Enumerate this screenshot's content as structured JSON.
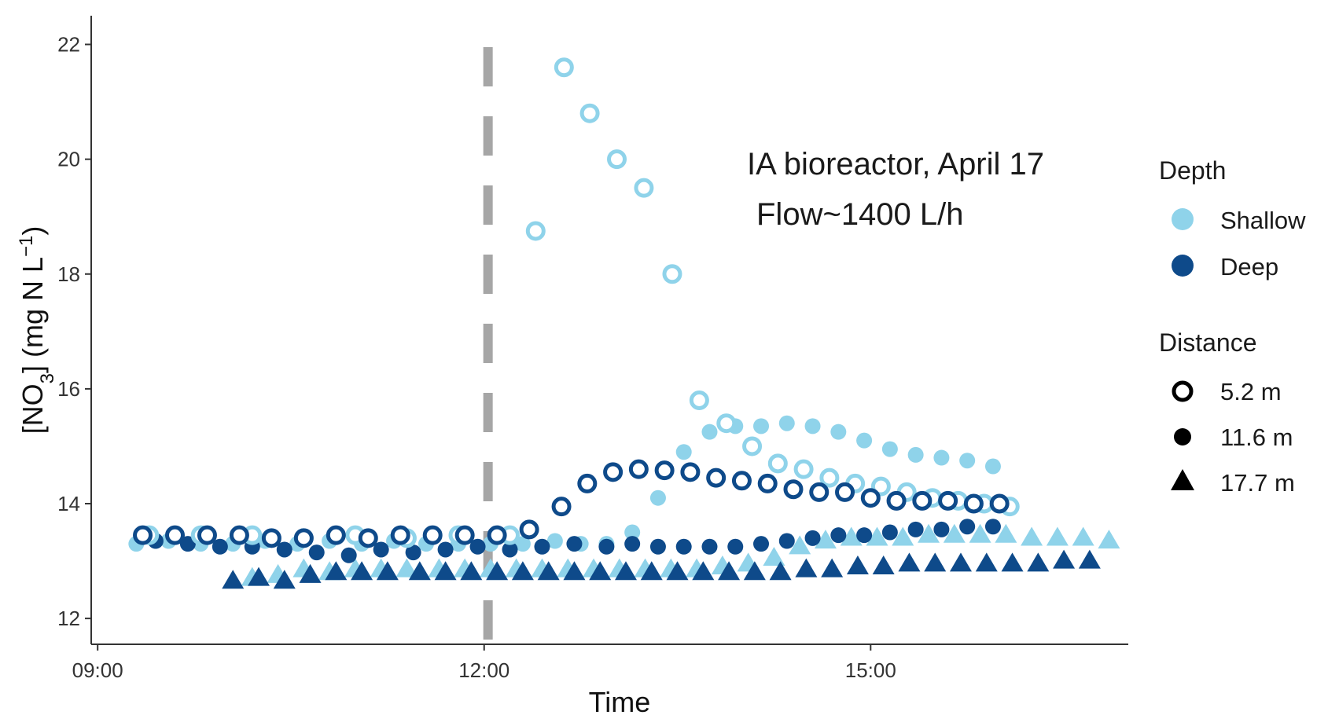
{
  "chart_data": {
    "type": "scatter",
    "xlabel": "Time",
    "ylabel": "[NO3] (mg N L−1)",
    "ylabel_parts": {
      "pre": "[NO",
      "sub": "3",
      "mid": "] (mg N L",
      "sup": "−1",
      "post": ")"
    },
    "x_unit": "hours",
    "xlim": [
      8.95,
      17.0
    ],
    "ylim": [
      11.55,
      22.5
    ],
    "xticks": [
      9,
      12,
      15
    ],
    "xtick_labels": [
      "09:00",
      "12:00",
      "15:00"
    ],
    "yticks": [
      12,
      14,
      16,
      18,
      20,
      22
    ],
    "ytick_labels": [
      "12",
      "14",
      "16",
      "18",
      "20",
      "22"
    ],
    "grid": false,
    "vline": {
      "x": 12.03,
      "style": "dashed",
      "color": "#a6a6a6"
    },
    "annotations": [
      "IA bioreactor, April 17",
      "Flow~1400 L/h"
    ],
    "colors": {
      "Shallow": "#8fd3ea",
      "Deep": "#0e4a8a"
    },
    "legend": {
      "depth_title": "Depth",
      "depth_items": [
        "Shallow",
        "Deep"
      ],
      "distance_title": "Distance",
      "distance_items": [
        {
          "label": "5.2 m",
          "shape": "ring"
        },
        {
          "label": "11.6 m",
          "shape": "dot"
        },
        {
          "label": "17.7 m",
          "shape": "triangle"
        }
      ],
      "placement": "right"
    },
    "series": [
      {
        "depth": "Shallow",
        "distance": "5.2 m",
        "shape": "ring",
        "x": [
          9.4,
          9.8,
          10.2,
          10.6,
          11.0,
          11.4,
          11.8,
          12.2,
          12.4,
          12.62,
          12.82,
          13.03,
          13.24,
          13.46,
          13.67,
          13.88,
          14.08,
          14.28,
          14.48,
          14.68,
          14.88,
          15.08,
          15.28,
          15.48,
          15.68,
          15.88,
          16.08
        ],
        "y": [
          13.45,
          13.45,
          13.45,
          13.4,
          13.45,
          13.4,
          13.45,
          13.45,
          18.75,
          21.6,
          20.8,
          20.0,
          19.5,
          18.0,
          15.8,
          15.4,
          15.0,
          14.7,
          14.6,
          14.45,
          14.35,
          14.3,
          14.2,
          14.1,
          14.05,
          14.0,
          13.95
        ]
      },
      {
        "depth": "Deep",
        "distance": "5.2 m",
        "shape": "ring",
        "x": [
          9.35,
          9.6,
          9.85,
          10.1,
          10.35,
          10.6,
          10.85,
          11.1,
          11.35,
          11.6,
          11.85,
          12.1,
          12.35,
          12.6,
          12.8,
          13.0,
          13.2,
          13.4,
          13.6,
          13.8,
          14.0,
          14.2,
          14.4,
          14.6,
          14.8,
          15.0,
          15.2,
          15.4,
          15.6,
          15.8,
          16.0
        ],
        "y": [
          13.45,
          13.45,
          13.45,
          13.45,
          13.4,
          13.4,
          13.45,
          13.4,
          13.45,
          13.45,
          13.45,
          13.45,
          13.55,
          13.95,
          14.35,
          14.55,
          14.6,
          14.58,
          14.55,
          14.45,
          14.4,
          14.35,
          14.25,
          14.2,
          14.2,
          14.1,
          14.05,
          14.05,
          14.05,
          14.0,
          14.0
        ]
      },
      {
        "depth": "Shallow",
        "distance": "11.6 m",
        "shape": "dot",
        "x": [
          9.3,
          9.55,
          9.8,
          10.05,
          10.3,
          10.55,
          10.8,
          11.05,
          11.3,
          11.55,
          11.8,
          12.05,
          12.3,
          12.55,
          12.75,
          12.95,
          13.15,
          13.35,
          13.55,
          13.75,
          13.95,
          14.15,
          14.35,
          14.55,
          14.75,
          14.95,
          15.15,
          15.35,
          15.55,
          15.75,
          15.95
        ],
        "y": [
          13.3,
          13.35,
          13.3,
          13.3,
          13.35,
          13.3,
          13.35,
          13.3,
          13.35,
          13.3,
          13.3,
          13.3,
          13.3,
          13.35,
          13.3,
          13.3,
          13.5,
          14.1,
          14.9,
          15.25,
          15.35,
          15.35,
          15.4,
          15.35,
          15.25,
          15.1,
          14.95,
          14.85,
          14.8,
          14.75,
          14.65
        ]
      },
      {
        "depth": "Deep",
        "distance": "11.6 m",
        "shape": "dot",
        "x": [
          9.45,
          9.7,
          9.95,
          10.2,
          10.45,
          10.7,
          10.95,
          11.2,
          11.45,
          11.7,
          11.95,
          12.2,
          12.45,
          12.7,
          12.95,
          13.15,
          13.35,
          13.55,
          13.75,
          13.95,
          14.15,
          14.35,
          14.55,
          14.75,
          14.95,
          15.15,
          15.35,
          15.55,
          15.75,
          15.95
        ],
        "y": [
          13.35,
          13.3,
          13.25,
          13.25,
          13.2,
          13.15,
          13.1,
          13.2,
          13.15,
          13.2,
          13.25,
          13.2,
          13.25,
          13.3,
          13.25,
          13.3,
          13.25,
          13.25,
          13.25,
          13.25,
          13.3,
          13.35,
          13.4,
          13.45,
          13.45,
          13.5,
          13.55,
          13.55,
          13.6,
          13.6
        ]
      },
      {
        "depth": "Shallow",
        "distance": "17.7 m",
        "shape": "triangle",
        "x": [
          10.2,
          10.4,
          10.6,
          10.8,
          11.0,
          11.2,
          11.4,
          11.65,
          11.85,
          12.05,
          12.25,
          12.45,
          12.65,
          12.85,
          13.05,
          13.25,
          13.45,
          13.65,
          13.85,
          14.05,
          14.25,
          14.45,
          14.65,
          14.85,
          15.05,
          15.25,
          15.45,
          15.65,
          15.85,
          16.05,
          16.25,
          16.45,
          16.65,
          16.85
        ],
        "y": [
          12.7,
          12.75,
          12.85,
          12.8,
          12.85,
          12.85,
          12.85,
          12.85,
          12.85,
          12.85,
          12.85,
          12.85,
          12.85,
          12.85,
          12.85,
          12.85,
          12.85,
          12.85,
          12.9,
          12.95,
          13.05,
          13.25,
          13.35,
          13.4,
          13.4,
          13.4,
          13.45,
          13.45,
          13.45,
          13.45,
          13.4,
          13.4,
          13.4,
          13.35
        ]
      },
      {
        "depth": "Deep",
        "distance": "17.7 m",
        "shape": "triangle",
        "x": [
          10.05,
          10.25,
          10.45,
          10.65,
          10.85,
          11.05,
          11.25,
          11.5,
          11.7,
          11.9,
          12.1,
          12.3,
          12.5,
          12.7,
          12.9,
          13.1,
          13.3,
          13.5,
          13.7,
          13.9,
          14.1,
          14.3,
          14.5,
          14.7,
          14.9,
          15.1,
          15.3,
          15.5,
          15.7,
          15.9,
          16.1,
          16.3,
          16.5,
          16.7
        ],
        "y": [
          12.65,
          12.7,
          12.65,
          12.75,
          12.8,
          12.8,
          12.8,
          12.8,
          12.8,
          12.8,
          12.8,
          12.8,
          12.8,
          12.8,
          12.8,
          12.8,
          12.8,
          12.8,
          12.8,
          12.8,
          12.8,
          12.8,
          12.85,
          12.85,
          12.9,
          12.9,
          12.95,
          12.95,
          12.95,
          12.95,
          12.95,
          12.95,
          13.0,
          13.0
        ]
      }
    ]
  }
}
